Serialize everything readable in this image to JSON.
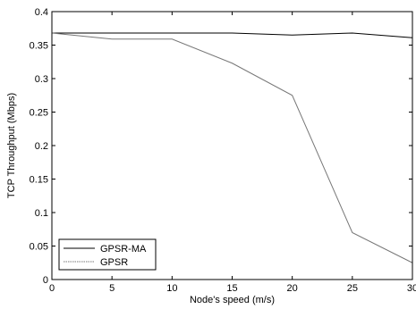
{
  "chart_data": {
    "type": "line",
    "title": "",
    "xlabel": "Node's speed (m/s)",
    "ylabel": "TCP Throughput (Mbps)",
    "xlim": [
      0,
      30
    ],
    "ylim": [
      0,
      0.4
    ],
    "xticks": [
      0,
      5,
      10,
      15,
      20,
      25,
      30
    ],
    "yticks": [
      0,
      0.05,
      0.1,
      0.15,
      0.2,
      0.25,
      0.3,
      0.35,
      0.4
    ],
    "x": [
      0,
      5,
      10,
      15,
      20,
      25,
      30
    ],
    "series": [
      {
        "name": "GPSR-MA",
        "values": [
          0.368,
          0.368,
          0.368,
          0.368,
          0.365,
          0.368,
          0.361
        ],
        "color": "#000000",
        "style": "solid"
      },
      {
        "name": "GPSR",
        "values": [
          0.368,
          0.359,
          0.359,
          0.323,
          0.275,
          0.07,
          0.025
        ],
        "color": "#777777",
        "style": "solid"
      }
    ],
    "legend_position": "bottom-left",
    "grid": false
  }
}
